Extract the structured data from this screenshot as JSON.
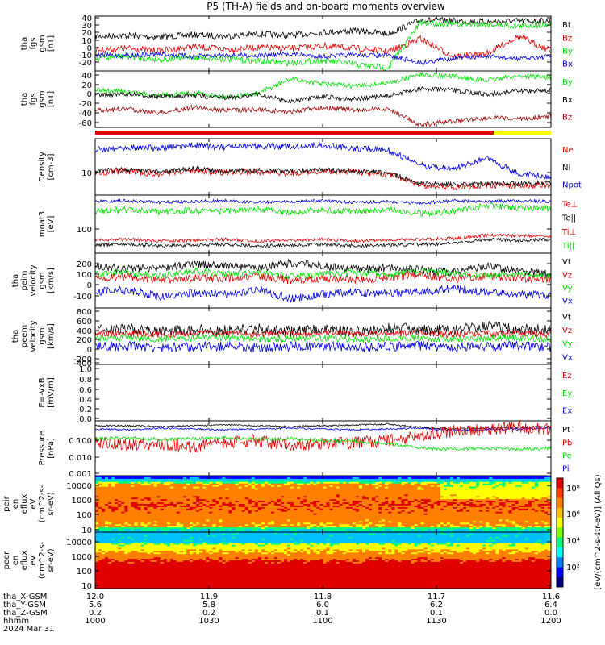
{
  "title": "P5 (TH-A) fields and on-board moments overview",
  "colors": {
    "black": "#000000",
    "red": "#e00000",
    "green": "#00e000",
    "blue": "#0000e0",
    "darkred": "#9a0000",
    "yellow": "#ffff00"
  },
  "chart_data": [
    {
      "type": "line",
      "ylabel": [
        "tha",
        "fgs",
        "gsm",
        "[nT]"
      ],
      "yticks": [
        "40",
        "30",
        "20",
        "10",
        "0",
        "-10",
        "-20"
      ],
      "ylim": [
        -25,
        42
      ],
      "series": [
        {
          "name": "Bt",
          "color": "black",
          "values": [
            18,
            20,
            16,
            22,
            19,
            24,
            20,
            26,
            30,
            23,
            38,
            35,
            33,
            32,
            34
          ]
        },
        {
          "name": "Bz",
          "color": "red",
          "values": [
            10,
            12,
            9,
            14,
            11,
            13,
            12,
            15,
            12,
            8,
            25,
            5,
            8,
            28,
            10
          ]
        },
        {
          "name": "By",
          "color": "green",
          "values": [
            -2,
            0,
            -4,
            -1,
            -3,
            -6,
            -8,
            -5,
            -10,
            -14,
            32,
            30,
            30,
            28,
            30
          ]
        },
        {
          "name": "Bx",
          "color": "blue",
          "values": [
            2,
            1,
            3,
            0,
            2,
            1,
            3,
            0,
            2,
            1,
            -6,
            -2,
            0,
            -3,
            0
          ]
        }
      ]
    },
    {
      "type": "line",
      "ylabel": [
        "tha",
        "fgs",
        "gsm",
        "[nT]"
      ],
      "yticks": [
        "40",
        "20",
        "0",
        "-20",
        "-40",
        "-60"
      ],
      "ylim": [
        -75,
        42
      ],
      "series": [
        {
          "name": "By",
          "color": "green",
          "values": [
            0,
            -2,
            -5,
            -3,
            -6,
            -4,
            25,
            18,
            15,
            20,
            40,
            35,
            30,
            38,
            35
          ]
        },
        {
          "name": "Bx",
          "color": "black",
          "values": [
            -3,
            -2,
            -4,
            -3,
            -5,
            -2,
            -8,
            -4,
            -6,
            -3,
            5,
            3,
            -2,
            2,
            3
          ]
        },
        {
          "name": "Bz",
          "color": "darkred",
          "values": [
            -45,
            -42,
            -48,
            -40,
            -44,
            -43,
            -46,
            -40,
            -44,
            -42,
            -68,
            -62,
            -58,
            -60,
            -56
          ]
        }
      ]
    },
    {
      "type": "line",
      "ylabel": [
        "Density",
        "[cm-3]"
      ],
      "yticks": [
        "10"
      ],
      "ylog": true,
      "series": [
        {
          "name": "Ne",
          "color": "red"
        },
        {
          "name": "Ni",
          "color": "black"
        },
        {
          "name": "Npot",
          "color": "blue"
        }
      ]
    },
    {
      "type": "line",
      "ylabel": [
        "moat3",
        "[eV]"
      ],
      "yticks": [
        "100"
      ],
      "ylog": true,
      "series": [
        {
          "name": "Te⊥",
          "color": "red"
        },
        {
          "name": "Te||",
          "color": "black"
        },
        {
          "name": "Ti⊥",
          "color": "red"
        },
        {
          "name": "Ti||",
          "color": "green"
        }
      ]
    },
    {
      "type": "line",
      "ylabel": [
        "tha",
        "peim",
        "velocity",
        "gsm",
        "[km/s]"
      ],
      "yticks": [
        "200",
        "100",
        "0",
        "-100"
      ],
      "ylim": [
        -160,
        260
      ],
      "series": [
        {
          "name": "Vt",
          "color": "black"
        },
        {
          "name": "Vz",
          "color": "red"
        },
        {
          "name": "Vy",
          "color": "green"
        },
        {
          "name": "Vx",
          "color": "blue"
        }
      ]
    },
    {
      "type": "line",
      "ylabel": [
        "tha",
        "peem",
        "velocity",
        "gsm",
        "[km/s]"
      ],
      "yticks": [
        "800",
        "600",
        "400",
        "200",
        "0",
        "-200",
        "-400"
      ],
      "ylim": [
        -420,
        820
      ],
      "series": [
        {
          "name": "Vt",
          "color": "black"
        },
        {
          "name": "Vz",
          "color": "red"
        },
        {
          "name": "Vy",
          "color": "green"
        },
        {
          "name": "Vx",
          "color": "blue"
        }
      ]
    },
    {
      "type": "line",
      "ylabel": [
        "E=-VxB",
        "[mV/m]"
      ],
      "yticks": [
        "1.0",
        "0.8",
        "0.6",
        "0.4",
        "0.2",
        "0.0"
      ],
      "ylim": [
        0,
        1
      ],
      "series": [
        {
          "name": "Ez",
          "color": "red"
        },
        {
          "name": "Ey",
          "color": "green"
        },
        {
          "name": "Ex",
          "color": "blue"
        }
      ]
    },
    {
      "type": "line",
      "ylabel": [
        "Pressure",
        "[nPa]"
      ],
      "yticks": [
        "0.100",
        "0.010",
        "0.001"
      ],
      "ylog": true,
      "series": [
        {
          "name": "Pt",
          "color": "black"
        },
        {
          "name": "Pb",
          "color": "red"
        },
        {
          "name": "Pe",
          "color": "green"
        },
        {
          "name": "Pi",
          "color": "blue"
        }
      ]
    },
    {
      "type": "heatmap",
      "ylabel": [
        "tha",
        "peir",
        "en",
        "eflux",
        "eV",
        "(cm^2-s-",
        "sr-eV)"
      ],
      "yticks": [
        "10000",
        "1000",
        "100",
        "10"
      ]
    },
    {
      "type": "heatmap",
      "ylabel": [
        "tha",
        "peer",
        "en",
        "eflux",
        "eV",
        "(cm^2-s-",
        "sr-eV)"
      ],
      "yticks": [
        "10000",
        "1000",
        "100",
        "10"
      ]
    }
  ],
  "colorbar": {
    "ticks": [
      "10⁸",
      "10⁶",
      "10⁴",
      "10²"
    ],
    "label": "[eV/(cm^2-s-str-eV)] (All Qs)"
  },
  "xaxis": {
    "rows": [
      {
        "label": "tha_X-GSM",
        "values": [
          "12.0",
          "11.9",
          "11.8",
          "11.7",
          "11.6"
        ]
      },
      {
        "label": "tha_Y-GSM",
        "values": [
          "5.6",
          "5.8",
          "6.0",
          "6.2",
          "6.4"
        ]
      },
      {
        "label": "tha_Z-GSM",
        "values": [
          "0.2",
          "0.2",
          "0.1",
          "0.1",
          "0.0"
        ]
      },
      {
        "label": "hhmm",
        "values": [
          "1000",
          "1030",
          "1100",
          "1130",
          "1200"
        ]
      }
    ],
    "date": "2024 Mar 31"
  }
}
